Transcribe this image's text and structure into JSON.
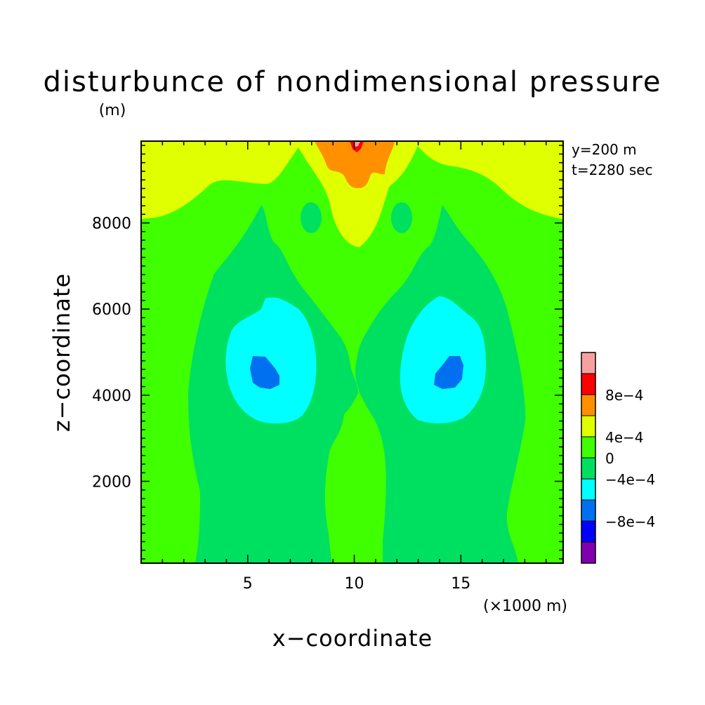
{
  "chart_data": {
    "type": "heatmap",
    "subtype": "filled-contour",
    "title": "disturbunce of nondimensional pressure",
    "ylabel_unit": "(m)",
    "xlabel": "x−coordinate",
    "ylabel": "z−coordinate",
    "xunit": "(×1000 m)",
    "info": [
      "y=200 m",
      "t=2280 sec"
    ],
    "xlim": [
      0,
      19.8
    ],
    "ylim": [
      100,
      9900
    ],
    "xticks": [
      5,
      10,
      15
    ],
    "yticks": [
      2000,
      4000,
      6000,
      8000
    ],
    "colorbar": {
      "levels": [
        -0.0012,
        -0.0008,
        -0.0004,
        0,
        0.0004,
        0.0008,
        0.0012
      ],
      "labels": [
        "−8e−4",
        "−4e−4",
        "0",
        "4e−4",
        "8e−4"
      ],
      "colors": [
        "#8000b0",
        "#0000ff",
        "#0070f0",
        "#00ffff",
        "#00e060",
        "#40ff00",
        "#e0ff00",
        "#ff9000",
        "#ff0000",
        "#f8a0a0"
      ]
    }
  }
}
